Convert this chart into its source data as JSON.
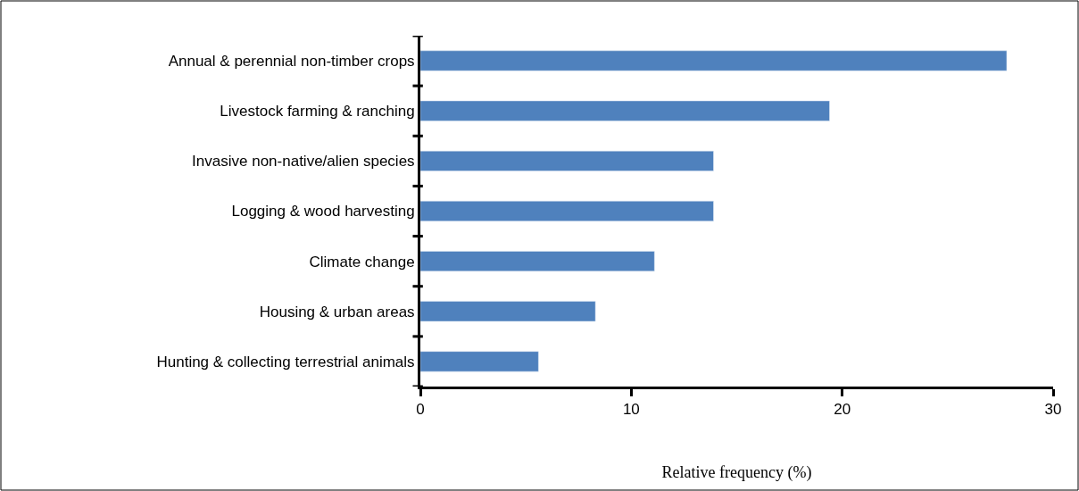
{
  "chart_data": {
    "type": "bar",
    "orientation": "horizontal",
    "categories": [
      "Annual & perennial non-timber crops",
      "Livestock farming & ranching",
      "Invasive non-native/alien species",
      "Logging & wood harvesting",
      "Climate change",
      "Housing & urban areas",
      "Hunting & collecting terrestrial animals"
    ],
    "values": [
      27.8,
      19.4,
      13.9,
      13.9,
      11.1,
      8.3,
      5.6
    ],
    "color": "#4f81bd",
    "xlabel": "Relative frequency (%)",
    "xlim": [
      0,
      30
    ],
    "xticks": [
      0,
      10,
      20,
      30
    ]
  }
}
